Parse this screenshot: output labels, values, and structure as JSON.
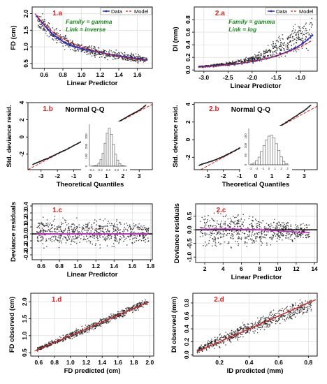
{
  "chart_data": [
    {
      "id": "1a",
      "panel_label": "1.a",
      "type": "scatter",
      "xlabel": "Linear Predictor",
      "ylabel": "FD (cm)",
      "xlim": [
        0.47,
        1.76
      ],
      "ylim": [
        0.35,
        2.2
      ],
      "xticks": [
        0.6,
        0.8,
        1.0,
        1.2,
        1.4,
        1.6
      ],
      "xtick_labels": [
        "0.6",
        "0.8",
        "1.0",
        "1.2",
        "1.4",
        "1.6"
      ],
      "yticks": [
        0.5,
        1.0,
        1.5,
        2.0
      ],
      "ytick_labels": [
        "0.5",
        "1.0",
        "1.5",
        "2.0"
      ],
      "grid": true,
      "legend_position": "top-right",
      "legend": [
        "Data",
        "Model"
      ],
      "annotations": [
        "Family = gamma",
        "Link = inverse"
      ],
      "scatter_envelope": {
        "x": [
          0.52,
          0.6,
          0.7,
          0.8,
          0.9,
          1.0,
          1.1,
          1.2,
          1.3,
          1.4,
          1.5,
          1.6,
          1.7
        ],
        "min": [
          1.5,
          1.25,
          1.05,
          0.9,
          0.8,
          0.75,
          0.68,
          0.62,
          0.58,
          0.55,
          0.52,
          0.5,
          0.48
        ],
        "max": [
          2.05,
          2.05,
          1.65,
          1.45,
          1.3,
          1.2,
          1.1,
          1.05,
          0.95,
          0.9,
          0.85,
          0.8,
          0.75
        ]
      },
      "series": [
        {
          "name": "Data",
          "color": "#2a2ad0",
          "x": [
            0.52,
            0.58,
            0.64,
            0.7,
            0.76,
            0.82,
            0.88,
            0.94,
            1.0,
            1.06,
            1.12,
            1.18,
            1.24,
            1.3,
            1.36,
            1.42,
            1.48,
            1.54,
            1.6,
            1.66,
            1.7
          ],
          "y": [
            1.92,
            1.72,
            1.52,
            1.36,
            1.24,
            1.13,
            1.05,
            0.99,
            0.95,
            0.91,
            0.88,
            0.84,
            0.81,
            0.77,
            0.74,
            0.72,
            0.7,
            0.67,
            0.64,
            0.62,
            0.61
          ]
        },
        {
          "name": "Model",
          "color": "#e02020",
          "x": [
            0.5,
            0.6,
            0.7,
            0.8,
            0.9,
            1.0,
            1.1,
            1.2,
            1.3,
            1.4,
            1.5,
            1.6,
            1.7
          ],
          "y": [
            2.0,
            1.67,
            1.43,
            1.25,
            1.11,
            1.0,
            0.91,
            0.83,
            0.77,
            0.71,
            0.67,
            0.63,
            0.59
          ]
        }
      ]
    },
    {
      "id": "2a",
      "panel_label": "2.a",
      "type": "scatter",
      "xlabel": "Linear Predictor",
      "ylabel": "DI (mm)",
      "xlim": [
        -3.2,
        -0.65
      ],
      "ylim": [
        -0.02,
        1.0
      ],
      "xticks": [
        -3.0,
        -2.5,
        -2.0,
        -1.5,
        -1.0
      ],
      "xtick_labels": [
        "-3.0",
        "-2.5",
        "-2.0",
        "-1.5",
        "-1.0"
      ],
      "yticks": [
        0.0,
        0.2,
        0.4,
        0.6,
        0.8
      ],
      "ytick_labels": [
        "0.0",
        "0.2",
        "0.4",
        "0.6",
        "0.8"
      ],
      "grid": true,
      "legend_position": "top-right",
      "legend": [
        "Data",
        "Model"
      ],
      "annotations": [
        "Family = gamma",
        "Link = log"
      ],
      "scatter_envelope": {
        "x": [
          -3.1,
          -2.8,
          -2.5,
          -2.2,
          -2.0,
          -1.8,
          -1.6,
          -1.4,
          -1.2,
          -1.0,
          -0.85,
          -0.75
        ],
        "min": [
          0.03,
          0.04,
          0.05,
          0.07,
          0.08,
          0.1,
          0.12,
          0.14,
          0.17,
          0.22,
          0.28,
          0.35
        ],
        "max": [
          0.07,
          0.1,
          0.14,
          0.2,
          0.26,
          0.35,
          0.48,
          0.6,
          0.75,
          0.88,
          0.95,
          0.97
        ]
      },
      "series": [
        {
          "name": "Data",
          "color": "#2a2ad0",
          "x": [
            -3.1,
            -2.9,
            -2.7,
            -2.5,
            -2.3,
            -2.1,
            -1.9,
            -1.7,
            -1.5,
            -1.3,
            -1.1,
            -0.95,
            -0.85,
            -0.75
          ],
          "y": [
            0.05,
            0.06,
            0.07,
            0.08,
            0.1,
            0.12,
            0.15,
            0.18,
            0.22,
            0.28,
            0.35,
            0.42,
            0.48,
            0.55
          ]
        },
        {
          "name": "Model",
          "color": "#e02020",
          "x": [
            -3.1,
            -2.8,
            -2.5,
            -2.2,
            -2.0,
            -1.8,
            -1.6,
            -1.4,
            -1.2,
            -1.0,
            -0.85,
            -0.75
          ],
          "y": [
            0.045,
            0.061,
            0.082,
            0.111,
            0.135,
            0.165,
            0.202,
            0.247,
            0.301,
            0.368,
            0.427,
            0.472
          ]
        }
      ]
    },
    {
      "id": "1b",
      "panel_label": "1.b",
      "type": "scatter",
      "title": "Normal Q-Q",
      "xlabel": "Theoretical Quantiles",
      "ylabel": "Std. deviance resid.",
      "xlim": [
        -3.8,
        3.8
      ],
      "ylim": [
        -3.8,
        4.0
      ],
      "xticks": [
        -3,
        -2,
        -1,
        0,
        1,
        2,
        3
      ],
      "xtick_labels": [
        "-3",
        "-2",
        "-1",
        "0",
        "1",
        "2",
        "3"
      ],
      "yticks": [
        -2,
        0,
        2,
        4
      ],
      "ytick_labels": [
        "-2",
        "0",
        "2",
        "4"
      ],
      "reference_line": {
        "from": [
          -3.8,
          -3.8
        ],
        "to": [
          3.8,
          3.8
        ]
      },
      "qq_points": {
        "x": [
          -3.5,
          -3.0,
          -2.5,
          -2.0,
          -1.5,
          -1.0,
          -0.5,
          0.0,
          0.5,
          1.0,
          1.5,
          2.0,
          2.5,
          3.0,
          3.4
        ],
        "y": [
          -3.2,
          -2.8,
          -2.4,
          -1.95,
          -1.5,
          -1.0,
          -0.5,
          0.0,
          0.5,
          1.0,
          1.52,
          2.05,
          2.6,
          3.1,
          3.7
        ]
      },
      "inset_histogram": {
        "xlim": [
          -0.45,
          0.45
        ],
        "ylim": [
          0,
          420
        ],
        "xticks": [
          -0.4,
          -0.2,
          0.0,
          0.2,
          0.4
        ],
        "xtick_labels": [
          "-0.4",
          "-0.2",
          "0.0",
          "0.2",
          "0.4"
        ],
        "yticks": [
          0,
          100,
          200,
          300
        ],
        "ytick_labels": [
          "0",
          "100",
          "200",
          "300"
        ],
        "bin_edges": [
          -0.4,
          -0.35,
          -0.3,
          -0.25,
          -0.2,
          -0.15,
          -0.1,
          -0.05,
          0.0,
          0.05,
          0.1,
          0.15,
          0.2,
          0.25,
          0.3,
          0.35,
          0.4
        ],
        "counts": [
          2,
          5,
          12,
          30,
          65,
          130,
          230,
          330,
          380,
          320,
          220,
          120,
          60,
          25,
          8,
          3
        ]
      }
    },
    {
      "id": "2b",
      "panel_label": "2.b",
      "type": "scatter",
      "title": "Normal Q-Q",
      "xlabel": "Theoretical Quantiles",
      "ylabel": "Std. deviance resid.",
      "xlim": [
        -3.8,
        3.8
      ],
      "ylim": [
        -3.4,
        4.2
      ],
      "xticks": [
        -3,
        -2,
        -1,
        0,
        1,
        2,
        3
      ],
      "xtick_labels": [
        "-3",
        "-2",
        "-1",
        "0",
        "1",
        "2",
        "3"
      ],
      "yticks": [
        -2,
        0,
        2,
        4
      ],
      "ytick_labels": [
        "-2",
        "0",
        "2",
        "4"
      ],
      "reference_line": {
        "from": [
          -3.4,
          -3.4
        ],
        "to": [
          3.8,
          3.8
        ]
      },
      "qq_points": {
        "x": [
          -3.5,
          -3.0,
          -2.5,
          -2.0,
          -1.5,
          -1.0,
          -0.5,
          0.0,
          0.5,
          1.0,
          1.5,
          2.0,
          2.5,
          3.0,
          3.4
        ],
        "y": [
          -2.9,
          -2.6,
          -2.3,
          -1.9,
          -1.45,
          -0.95,
          -0.45,
          0.0,
          0.5,
          1.0,
          1.55,
          2.1,
          2.7,
          3.3,
          3.9
        ]
      },
      "inset_histogram": {
        "xlim": [
          -3.3,
          3.3
        ],
        "ylim": [
          0,
          190
        ],
        "xticks": [
          -3,
          -2,
          -1,
          0,
          1,
          2,
          3
        ],
        "xtick_labels": [
          "-3",
          "-2",
          "-1",
          "0",
          "1",
          "2",
          "3"
        ],
        "yticks": [
          0,
          50,
          100,
          150
        ],
        "ytick_labels": [
          "0",
          "50",
          "100",
          "150"
        ],
        "bin_edges": [
          -3.0,
          -2.6,
          -2.2,
          -1.8,
          -1.4,
          -1.0,
          -0.6,
          -0.2,
          0.2,
          0.6,
          1.0,
          1.4,
          1.8,
          2.2,
          2.6,
          3.0
        ],
        "counts": [
          4,
          10,
          22,
          40,
          70,
          100,
          130,
          150,
          155,
          140,
          110,
          75,
          42,
          18,
          6
        ]
      }
    },
    {
      "id": "1c",
      "panel_label": "1.c",
      "type": "scatter",
      "xlabel": "Linear Predictor",
      "ylabel": "Deviance residuals",
      "xlim": [
        0.5,
        1.82
      ],
      "ylim": [
        -0.37,
        0.43
      ],
      "xticks": [
        0.6,
        0.8,
        1.0,
        1.2,
        1.4,
        1.6,
        1.8
      ],
      "xtick_labels": [
        "0.6",
        "0.8",
        "1.0",
        "1.2",
        "1.4",
        "1.6",
        "1.8"
      ],
      "yticks": [
        -0.3,
        -0.2,
        -0.1,
        0.0,
        0.1,
        0.2,
        0.3,
        0.4
      ],
      "ytick_labels": [
        "-0.3",
        "-0.2",
        "-0.1",
        "0.0",
        "0.1",
        "0.2",
        "0.3",
        "0.4"
      ],
      "grid": true,
      "scatter_envelope": {
        "x": [
          0.55,
          0.7,
          0.9,
          1.1,
          1.3,
          1.5,
          1.65,
          1.78
        ],
        "min": [
          -0.2,
          -0.25,
          -0.25,
          -0.25,
          -0.25,
          -0.22,
          -0.18,
          -0.15
        ],
        "max": [
          0.25,
          0.3,
          0.3,
          0.3,
          0.28,
          0.25,
          0.22,
          0.18
        ]
      },
      "zero_line": 0.0,
      "smooth": {
        "x": [
          0.55,
          0.9,
          1.2,
          1.5,
          1.78
        ],
        "y": [
          0.0,
          0.0,
          0.0,
          0.0,
          0.0
        ],
        "color": "#d61fd6"
      }
    },
    {
      "id": "2c",
      "panel_label": "2.c",
      "type": "scatter",
      "xlabel": "Linear Predictor",
      "ylabel": "Deviance residuals",
      "xlim": [
        1.0,
        14.3
      ],
      "ylim": [
        -1.2,
        0.95
      ],
      "xticks": [
        2,
        4,
        6,
        8,
        10,
        12,
        14
      ],
      "xtick_labels": [
        "2",
        "4",
        "6",
        "8",
        "10",
        "12",
        "14"
      ],
      "yticks": [
        -1.0,
        -0.5,
        0.0,
        0.5
      ],
      "ytick_labels": [
        "-1.0",
        "-0.5",
        "0.0",
        "0.5"
      ],
      "grid": true,
      "scatter_envelope": {
        "x": [
          1.5,
          3.0,
          4.5,
          6.0,
          8.0,
          10.0,
          12.0,
          13.5
        ],
        "min": [
          -0.7,
          -0.8,
          -0.85,
          -0.8,
          -0.7,
          -0.6,
          -0.5,
          -0.4
        ],
        "max": [
          0.55,
          0.75,
          0.85,
          0.8,
          0.65,
          0.5,
          0.35,
          0.25
        ]
      },
      "zero_line": 0.0,
      "smooth": {
        "x": [
          1.5,
          4.0,
          6.0,
          8.0,
          10.0,
          12.0,
          13.5
        ],
        "y": [
          0.02,
          0.03,
          0.02,
          0.0,
          -0.04,
          -0.08,
          -0.1
        ],
        "color": "#d61fd6"
      }
    },
    {
      "id": "1d",
      "panel_label": "1.d",
      "type": "scatter",
      "xlabel": "FD predicted (cm)",
      "ylabel": "FD observed (cm)",
      "xlim": [
        0.5,
        2.05
      ],
      "ylim": [
        0.4,
        2.25
      ],
      "xticks": [
        0.6,
        0.8,
        1.0,
        1.2,
        1.4,
        1.6,
        1.8,
        2.0
      ],
      "xtick_labels": [
        "0.6",
        "0.8",
        "1.0",
        "1.2",
        "1.4",
        "1.6",
        "1.8",
        "2.0"
      ],
      "yticks": [
        0.5,
        1.0,
        1.5,
        2.0
      ],
      "ytick_labels": [
        "0.5",
        "1.0",
        "1.5",
        "2.0"
      ],
      "grid": true,
      "scatter_envelope": {
        "x": [
          0.58,
          0.8,
          1.0,
          1.2,
          1.4,
          1.6,
          1.8,
          1.97
        ],
        "min": [
          0.5,
          0.7,
          0.85,
          1.05,
          1.25,
          1.45,
          1.65,
          1.85
        ],
        "max": [
          0.68,
          0.92,
          1.15,
          1.35,
          1.55,
          1.75,
          1.95,
          2.15
        ]
      },
      "fit_line": {
        "x": [
          0.55,
          1.99
        ],
        "y": [
          0.55,
          1.99
        ],
        "color": "#e02020"
      }
    },
    {
      "id": "2d",
      "panel_label": "2.d",
      "type": "scatter",
      "xlabel": "ID predicted (mm)",
      "ylabel": "DI observed (mm)",
      "xlim": [
        0.02,
        0.86
      ],
      "ylim": [
        -0.02,
        0.95
      ],
      "xticks": [
        0.2,
        0.4,
        0.6,
        0.8
      ],
      "xtick_labels": [
        "0.2",
        "0.4",
        "0.6",
        "0.8"
      ],
      "yticks": [
        0.0,
        0.2,
        0.4,
        0.6,
        0.8
      ],
      "ytick_labels": [
        "0.0",
        "0.2",
        "0.4",
        "0.6",
        "0.8"
      ],
      "grid": true,
      "scatter_envelope": {
        "x": [
          0.05,
          0.1,
          0.2,
          0.3,
          0.4,
          0.55,
          0.7,
          0.82
        ],
        "min": [
          0.02,
          0.04,
          0.1,
          0.18,
          0.28,
          0.38,
          0.5,
          0.62
        ],
        "max": [
          0.1,
          0.2,
          0.35,
          0.45,
          0.55,
          0.7,
          0.85,
          0.9
        ]
      },
      "fit_line": {
        "x": [
          0.05,
          0.85
        ],
        "y": [
          0.05,
          0.85
        ],
        "color": "#e02020"
      }
    }
  ],
  "colors": {
    "panel_label": "#e02020",
    "annotation": "#1a8a1a",
    "points": "#1a1a1a",
    "hist_fill": "#ffffff",
    "hist_stroke": "#555555",
    "grid": "#d7d7d7",
    "ref_line": "#e02020"
  }
}
